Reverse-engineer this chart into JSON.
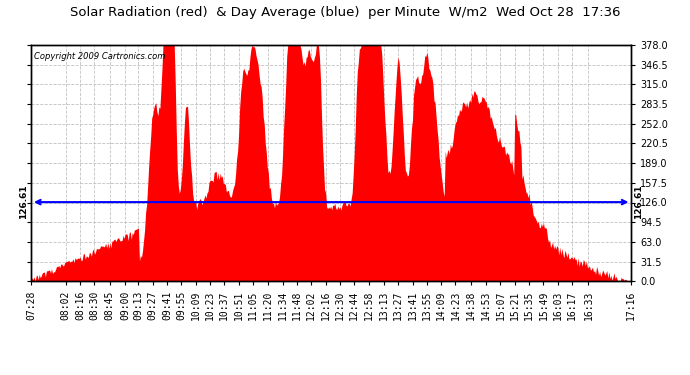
{
  "title": "Solar Radiation (red)  & Day Average (blue)  per Minute  W/m2  Wed Oct 28  17:36",
  "copyright_text": "Copyright 2009 Cartronics.com",
  "average_value": 126.61,
  "y_ticks": [
    0.0,
    31.5,
    63.0,
    94.5,
    126.0,
    157.5,
    189.0,
    220.5,
    252.0,
    283.5,
    315.0,
    346.5,
    378.0
  ],
  "ylim": [
    0,
    378.0
  ],
  "fill_color": "#FF0000",
  "avg_line_color": "#0000FF",
  "background_color": "#FFFFFF",
  "plot_bg_color": "#FFFFFF",
  "grid_color": "#BBBBBB",
  "title_fontsize": 9.5,
  "tick_fontsize": 7,
  "x_labels": [
    "07:28",
    "08:02",
    "08:16",
    "08:30",
    "08:45",
    "09:00",
    "09:13",
    "09:27",
    "09:41",
    "09:55",
    "10:09",
    "10:23",
    "10:37",
    "10:51",
    "11:05",
    "11:20",
    "11:34",
    "11:48",
    "12:02",
    "12:16",
    "12:30",
    "12:44",
    "12:58",
    "13:13",
    "13:27",
    "13:41",
    "13:55",
    "14:09",
    "14:23",
    "14:38",
    "14:53",
    "15:07",
    "15:21",
    "15:35",
    "15:49",
    "16:03",
    "16:17",
    "16:33",
    "17:16"
  ],
  "n_minutes": 588,
  "t0_hour": 7,
  "t0_min": 28,
  "seed": 12
}
